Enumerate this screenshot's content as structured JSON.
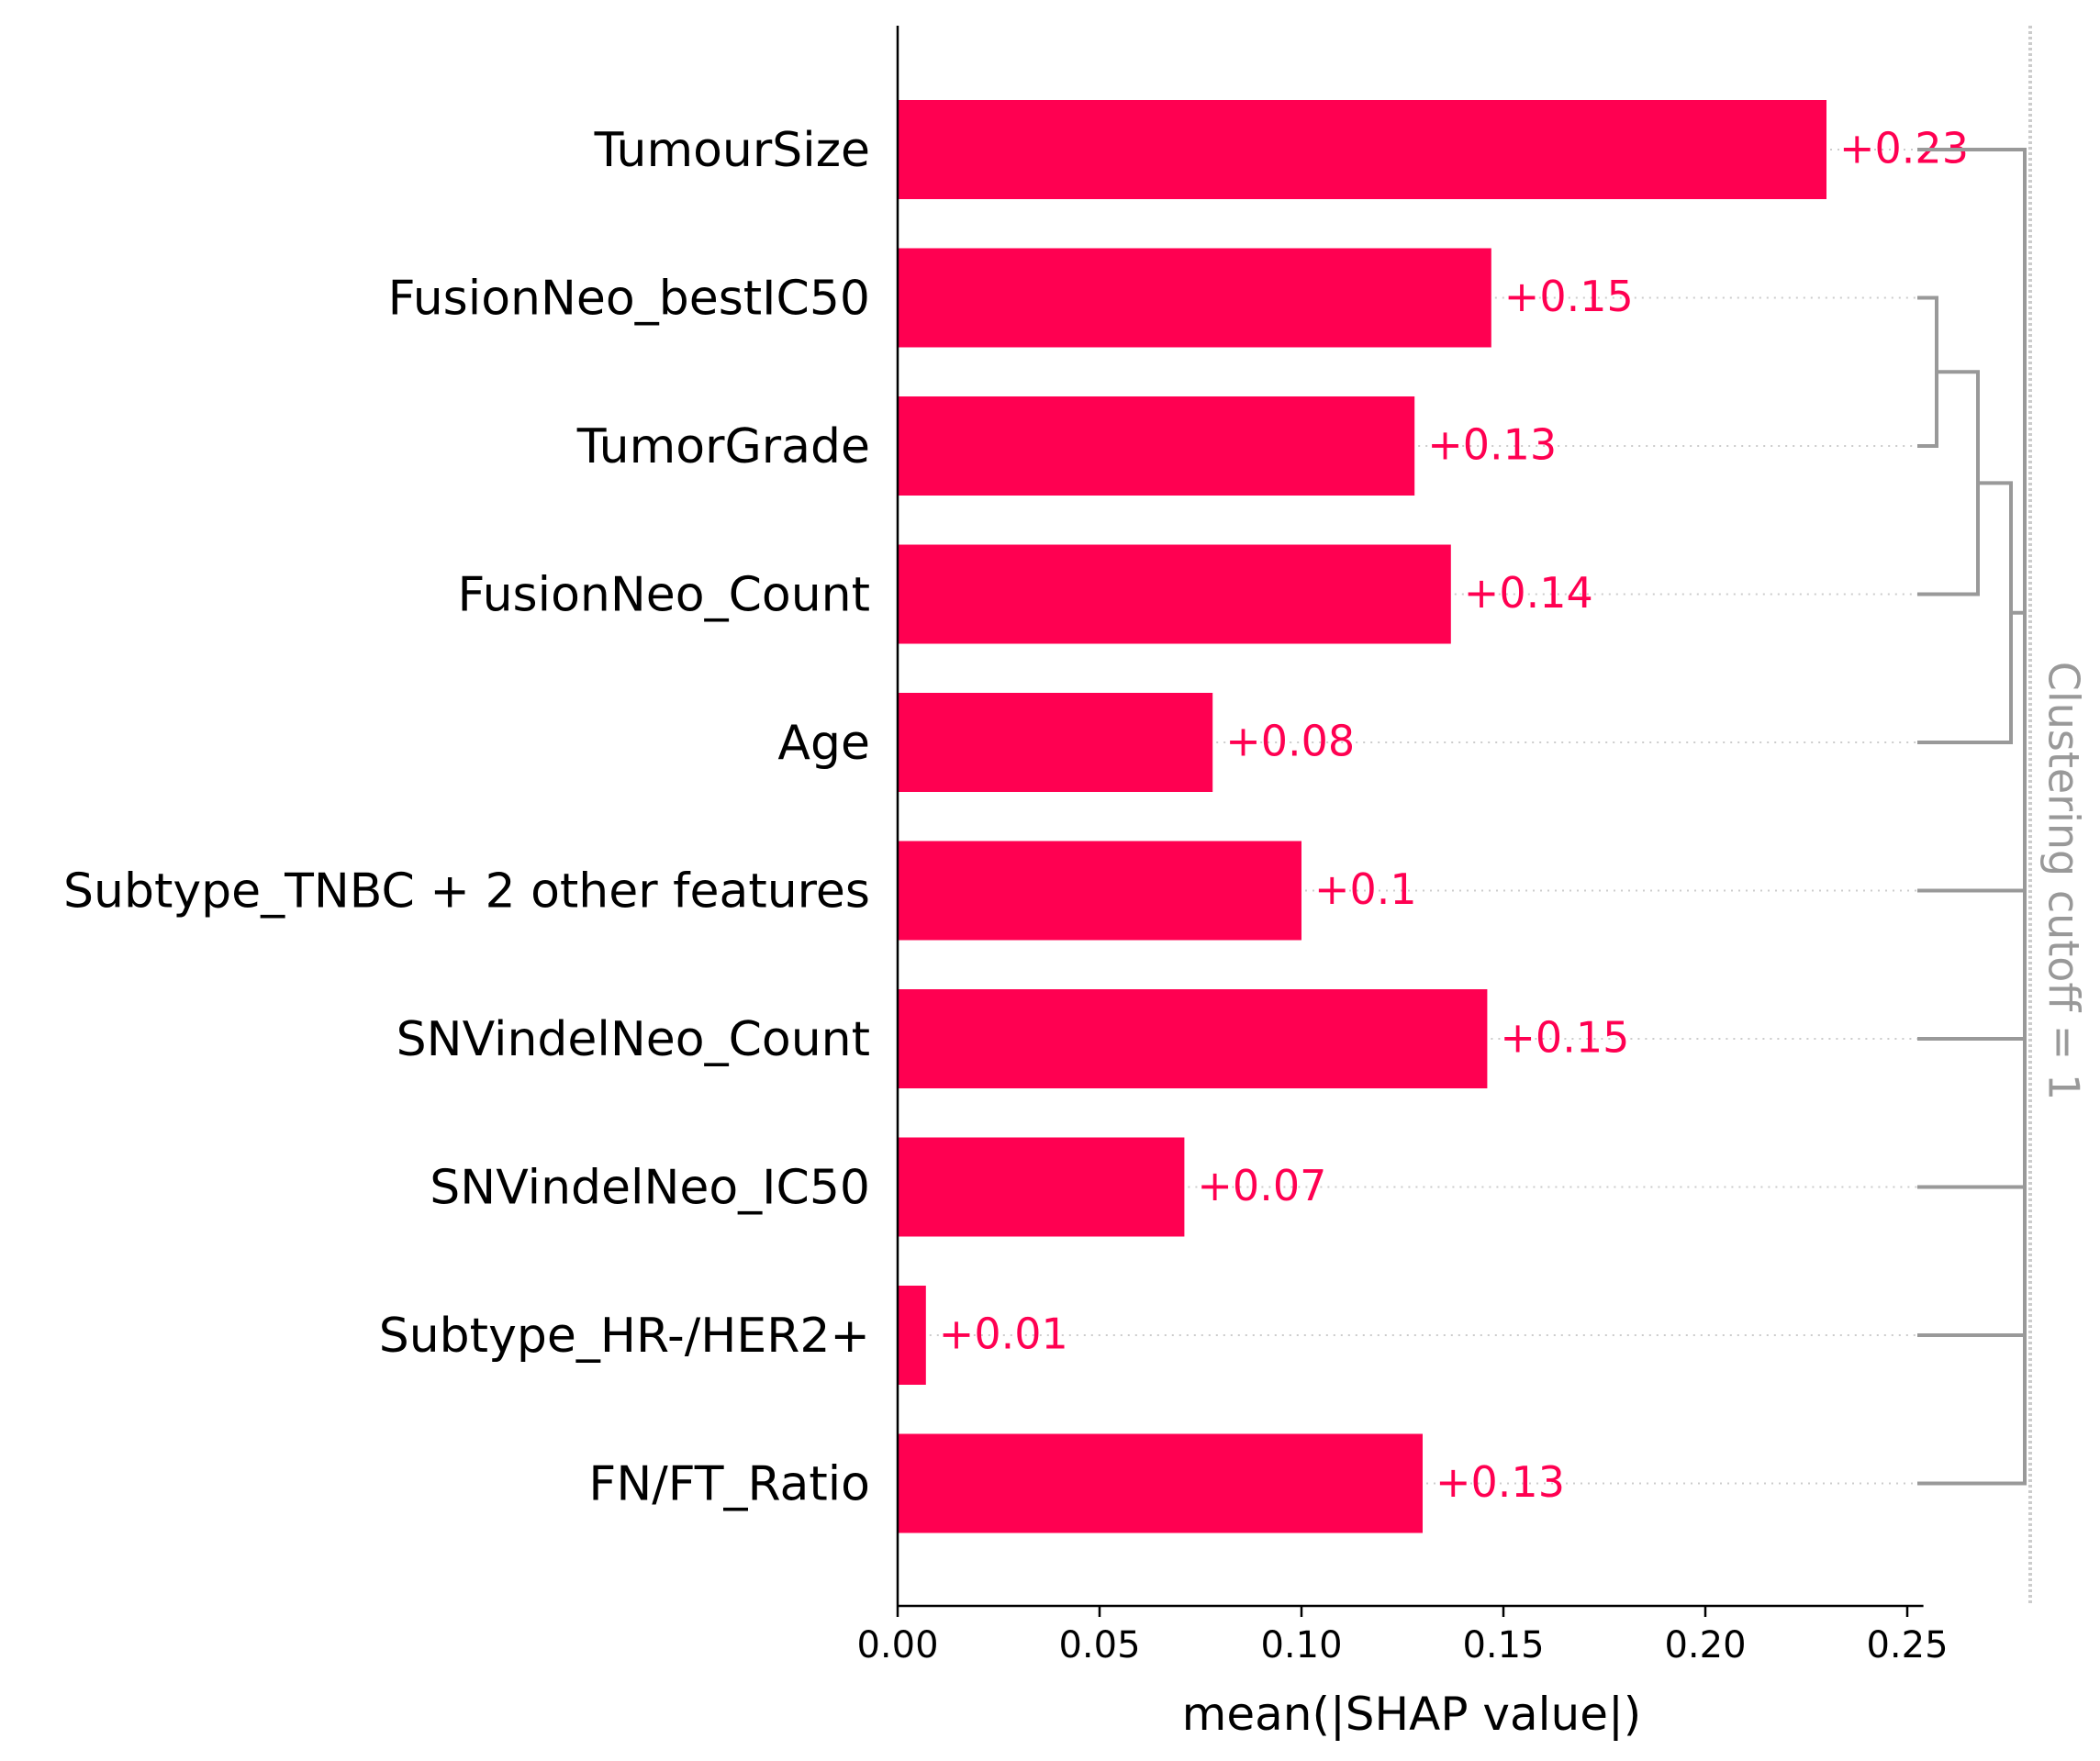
{
  "chart_data": {
    "type": "bar",
    "orientation": "horizontal",
    "categories": [
      "TumourSize",
      "FusionNeo_bestIC50",
      "TumorGrade",
      "FusionNeo_Count",
      "Age",
      "Subtype_TNBC + 2 other features",
      "SNVindelNeo_Count",
      "SNVindelNeo_IC50",
      "Subtype_HR-/HER2+",
      "FN/FT_Ratio"
    ],
    "values": [
      0.23,
      0.147,
      0.128,
      0.137,
      0.078,
      0.1,
      0.146,
      0.071,
      0.007,
      0.13
    ],
    "value_labels": [
      "+0.23",
      "+0.15",
      "+0.13",
      "+0.14",
      "+0.08",
      "+0.1",
      "+0.15",
      "+0.07",
      "+0.01",
      "+0.13"
    ],
    "xlabel": "mean(|SHAP value|)",
    "ylabel": "",
    "xlim": [
      0,
      0.254
    ],
    "xticks": [
      "0.00",
      "0.05",
      "0.10",
      "0.15",
      "0.20",
      "0.25"
    ],
    "xtick_values": [
      0,
      0.05,
      0.1,
      0.15,
      0.2,
      0.25
    ],
    "cutoff_label": "Clustering cutoff = 1",
    "colors": {
      "bar": "#ff0051",
      "value_label": "#ff0051",
      "dendrogram": "#999999",
      "guide": "#cccccc",
      "axis": "#000000",
      "cutoff_label": "#999999"
    },
    "clustering": {
      "merges": [
        [
          6,
          7
        ],
        [
          1,
          2
        ],
        [
          "m1",
          3
        ],
        [
          "m2",
          4
        ],
        [
          "m3",
          5
        ],
        [
          "m0",
          8
        ],
        [
          "m4",
          "m5"
        ],
        [
          "m6",
          9
        ],
        [
          "m7",
          0
        ]
      ],
      "merge_heights": [
        0.42,
        0.07,
        0.15,
        0.12,
        0.12,
        0.05,
        0.13,
        0.07,
        0.02
      ]
    },
    "grid": false,
    "legend": "none"
  }
}
